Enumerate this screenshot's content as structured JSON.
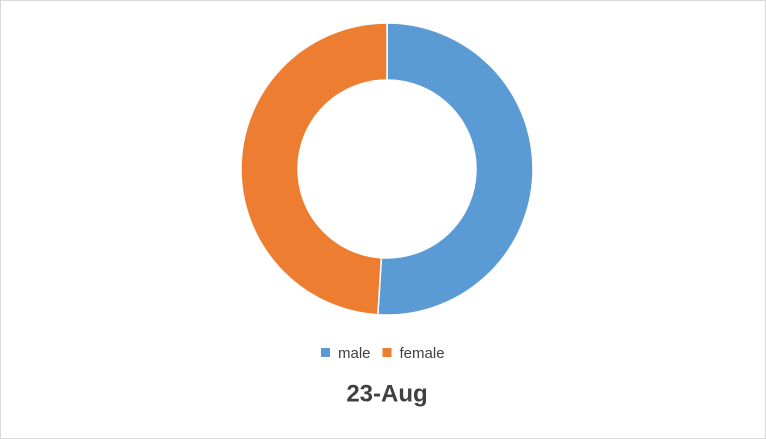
{
  "chart_data": {
    "type": "donut",
    "title": "23-Aug",
    "categories": [
      "male",
      "female"
    ],
    "values": [
      51,
      49
    ],
    "colors": [
      "#5b9bd5",
      "#ed7d31"
    ],
    "legend": "bottom"
  }
}
